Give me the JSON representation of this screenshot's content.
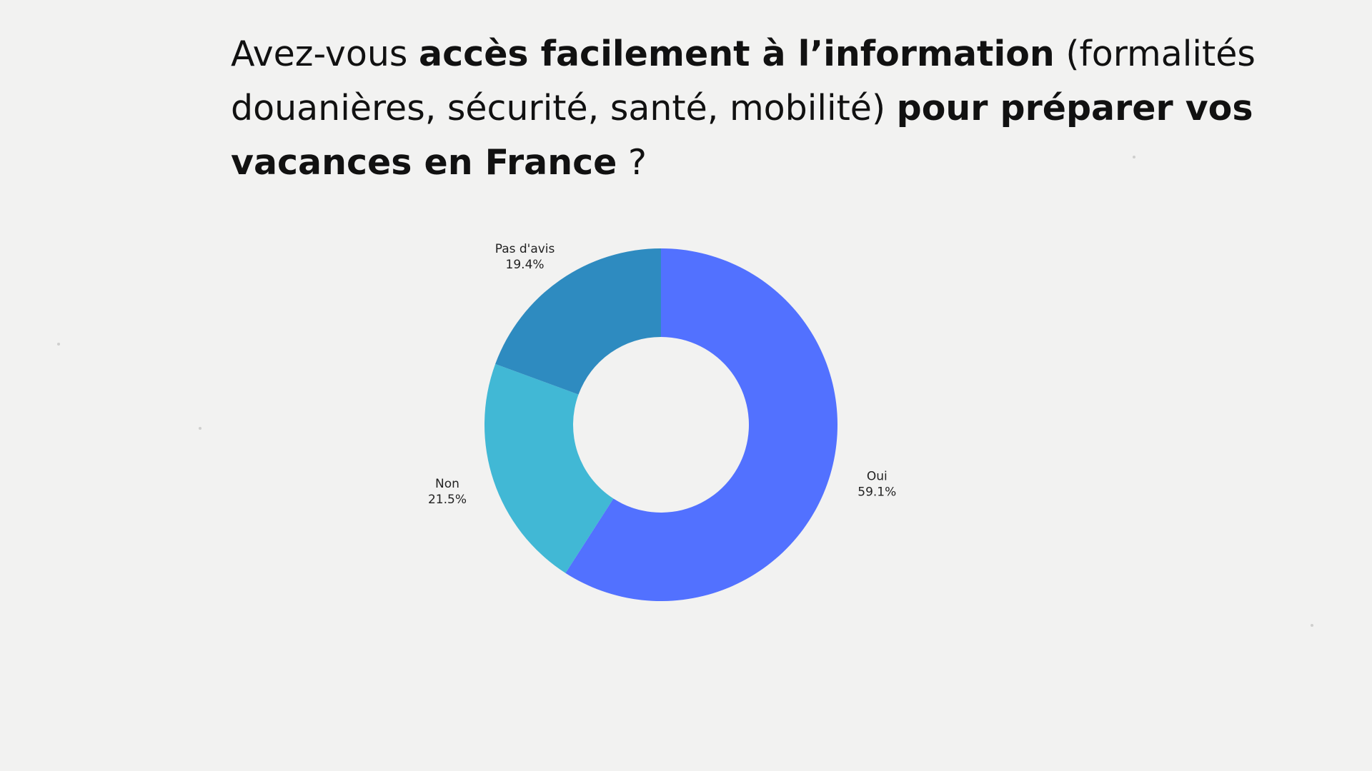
{
  "title": {
    "segments": [
      {
        "text": "Avez-vous ",
        "bold": false
      },
      {
        "text": "accès facilement à l’information",
        "bold": true
      },
      {
        "text": " (formalités douanières, sécurité, santé, mobilité) ",
        "bold": false
      },
      {
        "text": "pour préparer vos vacances en France",
        "bold": true
      },
      {
        "text": " ?",
        "bold": false
      }
    ]
  },
  "chart_data": {
    "type": "pie",
    "variant": "donut",
    "slices": [
      {
        "label": "Oui",
        "value": 59.1,
        "value_label": "59.1%",
        "color": "#5271ff"
      },
      {
        "label": "Non",
        "value": 21.5,
        "value_label": "21.5%",
        "color": "#41b8d5"
      },
      {
        "label": "Pas d'avis",
        "value": 19.4,
        "value_label": "19.4%",
        "color": "#2e8bc0"
      }
    ],
    "start_angle": "12 o'clock",
    "direction": "clockwise",
    "legend": "none"
  }
}
